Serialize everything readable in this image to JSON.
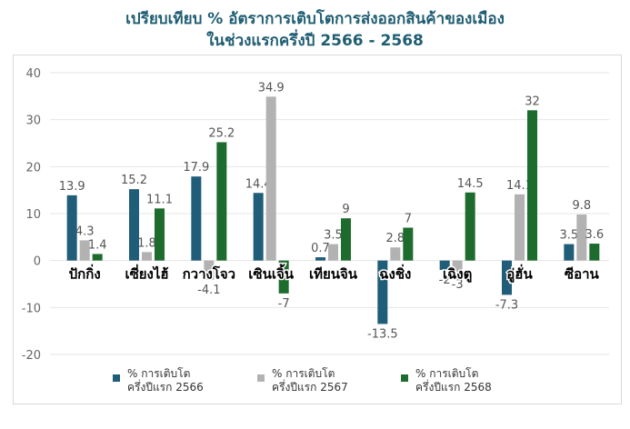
{
  "title": [
    "เปรียบเทียบ % อัตราการเติบโตการส่งออกสินค้าของเมือง",
    "ในช่วงแรกครึ่งปี 2566 - 2568"
  ],
  "chart_data": {
    "type": "bar",
    "categories": [
      "ปักกิ่ง",
      "เซี่ยงไฮ้",
      "กวางโจว",
      "เซินเจิ้น",
      "เทียนจิน",
      "ฉงชิ่ง",
      "เฉิงตู",
      "อู่ฮั่น",
      "ซีอาน"
    ],
    "series": [
      {
        "name": "% การเติบโต ครึ่งปีแรก 2566",
        "color": "#1f5d78",
        "values": [
          13.9,
          15.2,
          17.9,
          14.4,
          0.7,
          -13.5,
          -2,
          -7.3,
          3.5
        ]
      },
      {
        "name": "% การเติบโต ครึ่งปีแรก 2567",
        "color": "#b2b2b2",
        "values": [
          4.3,
          1.8,
          -4.1,
          34.9,
          3.5,
          2.8,
          -3,
          14.1,
          9.8
        ]
      },
      {
        "name": "% การเติบโต ครึ่งปีแรก 2568",
        "color": "#1e6b2e",
        "values": [
          1.4,
          11.1,
          25.2,
          -7,
          9,
          7,
          14.5,
          32,
          3.6
        ]
      }
    ],
    "ylim": [
      -20,
      40
    ],
    "yticks": [
      40,
      30,
      20,
      10,
      0,
      -10,
      -20
    ],
    "grid": true,
    "legend": "bottom"
  },
  "legend": [
    {
      "label": "% การเติบโต\nครึ่งปีแรก 2566",
      "color": "#1f5d78"
    },
    {
      "label": "% การเติบโต\nครึ่งปีแรก 2567",
      "color": "#b2b2b2"
    },
    {
      "label": "% การเติบโต\nครึ่งปีแรก 2568",
      "color": "#1e6b2e"
    }
  ]
}
